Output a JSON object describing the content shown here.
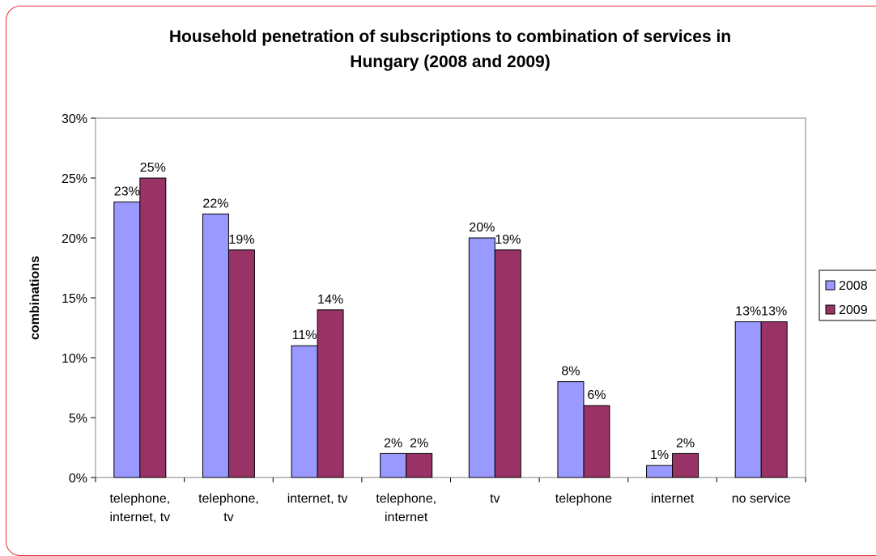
{
  "chart_data": {
    "type": "bar",
    "title_lines": [
      "Household penetration of subscriptions to combination of services in",
      "Hungary (2008 and 2009)"
    ],
    "ylabel": "combinations",
    "xlabel": "",
    "ylim": [
      0,
      30
    ],
    "y_ticks": [
      "0%",
      "5%",
      "10%",
      "15%",
      "20%",
      "25%",
      "30%"
    ],
    "y_tick_values": [
      0,
      5,
      10,
      15,
      20,
      25,
      30
    ],
    "categories": [
      [
        "telephone,",
        "internet, tv"
      ],
      [
        "telephone,",
        "tv"
      ],
      [
        "internet, tv"
      ],
      [
        "telephone,",
        "internet"
      ],
      [
        "tv"
      ],
      [
        "telephone"
      ],
      [
        "internet"
      ],
      [
        "no service"
      ]
    ],
    "series": [
      {
        "name": "2008",
        "color": "#9999ff",
        "values": [
          23,
          22,
          11,
          2,
          20,
          8,
          1,
          13
        ],
        "labels": [
          "23%",
          "22%",
          "11%",
          "2%",
          "20%",
          "8%",
          "1%",
          "13%"
        ]
      },
      {
        "name": "2009",
        "color": "#993366",
        "values": [
          25,
          19,
          14,
          2,
          19,
          6,
          2,
          13
        ],
        "labels": [
          "25%",
          "19%",
          "14%",
          "2%",
          "19%",
          "6%",
          "2%",
          "13%"
        ]
      }
    ],
    "legend_position": "right",
    "grid": false
  }
}
